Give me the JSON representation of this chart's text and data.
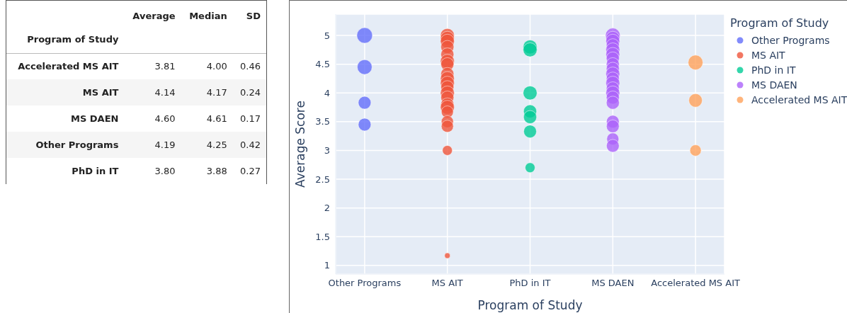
{
  "chart_data": [
    {
      "type": "other",
      "ylabel": "Program of Study",
      "categories": [
        "Average",
        "Median",
        "SD"
      ],
      "y_categories": [
        "Accelerated MS AIT",
        "MS AIT",
        "MS DAEN",
        "Other Programs",
        "PhD in IT"
      ],
      "cell_labels": [
        [
          "3.81",
          "4.00",
          "0.46"
        ],
        [
          "4.14",
          "4.17",
          "0.24"
        ],
        [
          "4.60",
          "4.61",
          "0.17"
        ],
        [
          "4.19",
          "4.25",
          "0.42"
        ],
        [
          "3.80",
          "3.88",
          "0.27"
        ]
      ]
    },
    {
      "type": "bubble",
      "xlabel": "Program of Study",
      "ylabel": "Average Score",
      "legend_title": "Program of Study",
      "legend": "top right",
      "grid": true,
      "categories": [
        "Other Programs",
        "MS AIT",
        "PhD in IT",
        "MS DAEN",
        "Accelerated MS AIT"
      ],
      "ylim": [
        0.85,
        5.37
      ],
      "yticks": [
        1,
        1.5,
        2,
        2.5,
        3,
        3.5,
        4,
        4.5,
        5
      ],
      "series": [
        {
          "name": "Other Programs",
          "color": "#636efa",
          "x": [
            "Other Programs",
            "Other Programs",
            "Other Programs",
            "Other Programs"
          ],
          "values": [
            5,
            4.45,
            3.83,
            3.45
          ],
          "sizes": [
            1,
            0.9,
            0.67,
            0.67
          ]
        },
        {
          "name": "MS AIT",
          "color": "#ef553b",
          "x": [
            "MS AIT",
            "MS AIT",
            "MS AIT",
            "MS AIT",
            "MS AIT",
            "MS AIT",
            "MS AIT",
            "MS AIT",
            "MS AIT",
            "MS AIT",
            "MS AIT",
            "MS AIT",
            "MS AIT",
            "MS AIT",
            "MS AIT",
            "MS AIT",
            "MS AIT",
            "MS AIT",
            "MS AIT",
            "MS AIT"
          ],
          "values": [
            5,
            4.95,
            4.9,
            4.8,
            4.67,
            4.55,
            4.5,
            4.33,
            4.25,
            4.17,
            4.1,
            4,
            3.92,
            3.8,
            3.75,
            3.67,
            3.5,
            3.42,
            3,
            1.17
          ],
          "sizes": [
            0.8,
            0.8,
            0.8,
            0.7,
            0.7,
            0.8,
            0.7,
            0.7,
            0.8,
            0.8,
            0.7,
            0.8,
            0.7,
            0.7,
            0.8,
            0.6,
            0.6,
            0.6,
            0.4,
            0.13
          ]
        },
        {
          "name": "PhD in IT",
          "color": "#00cc96",
          "x": [
            "PhD in IT",
            "PhD in IT",
            "PhD in IT",
            "PhD in IT",
            "PhD in IT",
            "PhD in IT",
            "PhD in IT"
          ],
          "values": [
            4.8,
            4.75,
            4,
            3.68,
            3.58,
            3.33,
            2.7
          ],
          "sizes": [
            0.8,
            0.8,
            0.8,
            0.7,
            0.7,
            0.67,
            0.4
          ]
        },
        {
          "name": "MS DAEN",
          "color": "#ab63fa",
          "x": [
            "MS DAEN",
            "MS DAEN",
            "MS DAEN",
            "MS DAEN",
            "MS DAEN",
            "MS DAEN",
            "MS DAEN",
            "MS DAEN",
            "MS DAEN",
            "MS DAEN",
            "MS DAEN",
            "MS DAEN",
            "MS DAEN",
            "MS DAEN",
            "MS DAEN",
            "MS DAEN",
            "MS DAEN",
            "MS DAEN",
            "MS DAEN",
            "MS DAEN"
          ],
          "values": [
            5,
            4.95,
            4.9,
            4.83,
            4.75,
            4.67,
            4.6,
            4.5,
            4.42,
            4.33,
            4.25,
            4.17,
            4.08,
            4,
            3.92,
            3.83,
            3.5,
            3.42,
            3.2,
            3.08
          ],
          "sizes": [
            0.9,
            0.8,
            0.8,
            0.7,
            0.8,
            0.8,
            0.7,
            0.7,
            0.7,
            0.8,
            0.7,
            0.8,
            0.7,
            0.8,
            0.7,
            0.7,
            0.67,
            0.67,
            0.6,
            0.67
          ]
        },
        {
          "name": "Accelerated MS AIT",
          "color": "#ffa15a",
          "x": [
            "Accelerated MS AIT",
            "Accelerated MS AIT",
            "Accelerated MS AIT"
          ],
          "values": [
            4.53,
            3.87,
            3
          ],
          "sizes": [
            0.9,
            0.75,
            0.53
          ]
        }
      ]
    }
  ]
}
